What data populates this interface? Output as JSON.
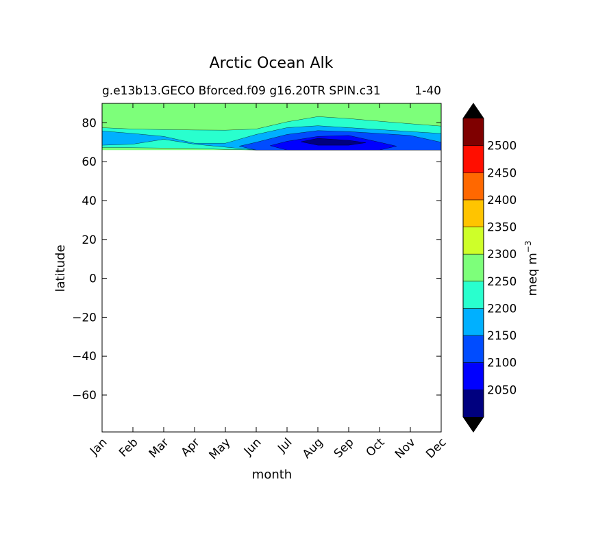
{
  "chart_data": {
    "type": "contour",
    "title": "Arctic Ocean Alk",
    "subtitle_left": "g.e13b13.GECO Bforced.f09 g16.20TR SPIN.c31",
    "subtitle_right": "1-40",
    "xlabel": "month",
    "ylabel": "latitude",
    "x_categories": [
      "Jan",
      "Feb",
      "Mar",
      "Apr",
      "May",
      "Jun",
      "Jul",
      "Aug",
      "Sep",
      "Oct",
      "Nov",
      "Dec"
    ],
    "yticks": [
      80,
      60,
      40,
      20,
      0,
      -20,
      -40,
      -60
    ],
    "ylim": [
      -79,
      90
    ],
    "colorbar": {
      "label": "meq m",
      "label_exponent": "−3",
      "ticks": [
        "2050",
        "2100",
        "2150",
        "2200",
        "2250",
        "2300",
        "2350",
        "2400",
        "2450",
        "2500"
      ],
      "levels": [
        2000,
        2050,
        2100,
        2150,
        2200,
        2250,
        2300,
        2350,
        2400,
        2450,
        2500,
        2550
      ],
      "colors": [
        "#00007f",
        "#0000ff",
        "#004cff",
        "#00b0ff",
        "#29ffce",
        "#7dff7a",
        "#ceff29",
        "#ffc400",
        "#ff6800",
        "#ff0e00",
        "#7f0000"
      ],
      "extend_low_color": "#000000",
      "extend_high_color": "#000000"
    },
    "contour_bands": [
      {
        "level": 2250,
        "upper_lat": [
          90,
          90,
          90,
          90,
          90,
          90,
          90,
          90,
          90,
          90,
          90,
          90
        ],
        "lower_lat": [
          66,
          66,
          66,
          66,
          66,
          66,
          66,
          66,
          66,
          66,
          66,
          66
        ]
      },
      {
        "level": 2200,
        "upper_lat": [
          77.5,
          76.8,
          76.5,
          76.3,
          76.2,
          76.8,
          80.5,
          83.2,
          82.2,
          80.8,
          79.5,
          78.3
        ],
        "lower_lat": [
          67.3,
          67.2,
          67.0,
          66.8,
          66.3,
          66.0,
          66.0,
          66.0,
          66.0,
          66.0,
          66.0,
          66.0
        ]
      },
      {
        "level": 2150,
        "upper_lat": [
          75.8,
          74.5,
          73.0,
          69.5,
          69.5,
          74.0,
          77.5,
          78.5,
          77.5,
          76.5,
          75.5,
          74.5
        ],
        "lower_lat": [
          68.5,
          69.0,
          71.5,
          69.0,
          67.5,
          66.0,
          66.0,
          66.0,
          66.0,
          66.0,
          66.0,
          66.0
        ]
      },
      {
        "level": 2100,
        "upper_lat": [
          null,
          null,
          null,
          null,
          null,
          70.0,
          74.0,
          76.0,
          75.5,
          74.5,
          73.5,
          70.0
        ],
        "lower_lat": [
          null,
          null,
          null,
          null,
          null,
          66.0,
          66.0,
          66.0,
          66.0,
          66.0,
          66.0,
          66.0
        ]
      },
      {
        "level": 2050,
        "upper_lat": [
          null,
          null,
          null,
          null,
          null,
          null,
          70.5,
          73.0,
          73.5,
          70.0,
          null,
          null
        ],
        "lower_lat": [
          null,
          null,
          null,
          null,
          null,
          null,
          66.0,
          66.0,
          66.0,
          66.0,
          null,
          null
        ]
      },
      {
        "level": 2000,
        "upper_lat": [
          null,
          null,
          null,
          null,
          null,
          null,
          null,
          72.0,
          71.0,
          null,
          null,
          null
        ],
        "lower_lat": [
          null,
          null,
          null,
          null,
          null,
          null,
          null,
          68.5,
          68.5,
          null,
          null,
          null
        ]
      }
    ]
  }
}
